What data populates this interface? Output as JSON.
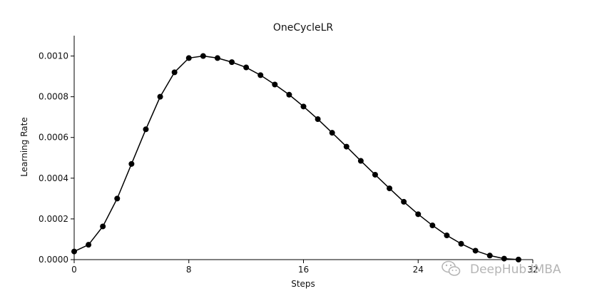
{
  "chart_data": {
    "type": "line",
    "title": "OneCycleLR",
    "xlabel": "Steps",
    "ylabel": "Learning Rate",
    "xlim": [
      0,
      32
    ],
    "ylim": [
      0,
      0.0011
    ],
    "xticks": [
      "0",
      "8",
      "16",
      "24",
      "32"
    ],
    "yticks": [
      "0.0000",
      "0.0002",
      "0.0004",
      "0.0006",
      "0.0008",
      "0.0010"
    ],
    "grid": false,
    "series": [
      {
        "color": "#000000",
        "marker": "circle",
        "x": [
          0,
          1,
          2,
          3,
          4,
          5,
          6,
          7,
          8,
          9,
          10,
          11,
          12,
          13,
          14,
          15,
          16,
          17,
          18,
          19,
          20,
          21,
          22,
          23,
          24,
          25,
          26,
          27,
          28,
          29,
          30,
          31
        ],
        "y": [
          4e-05,
          7.3e-05,
          0.000163,
          0.0003,
          0.00047,
          0.00064,
          0.0008,
          0.00092,
          0.00099,
          0.001,
          0.00099,
          0.00097,
          0.000944,
          0.000906,
          0.00086,
          0.00081,
          0.000752,
          0.00069,
          0.000623,
          0.000555,
          0.000485,
          0.000417,
          0.00035,
          0.000284,
          0.000223,
          0.000168,
          0.000119,
          7.8e-05,
          4.4e-05,
          2e-05,
          5e-06,
          4e-07
        ]
      }
    ]
  },
  "watermark": {
    "text": "DeepHub IMBA",
    "icon": "wechat-icon"
  }
}
